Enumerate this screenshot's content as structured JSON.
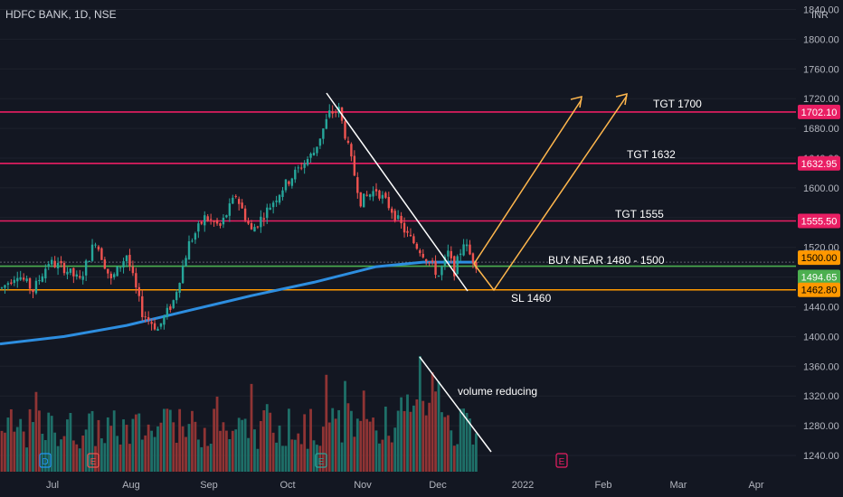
{
  "header": {
    "title": "HDFC BANK, 1D, NSE",
    "currency": "INR"
  },
  "colors": {
    "background": "#131722",
    "up": "#26a69a",
    "down": "#ef5350",
    "volume_up": "#1e6f68",
    "volume_down": "#8f3434",
    "ma": "#2d8ee0",
    "resistance": "#e91e63",
    "support_buy": "#4caf50",
    "stop_loss": "#ff9800",
    "projection": "#ffb74d",
    "trendline": "#ffffff",
    "axis_text": "#b2b5be",
    "grid": "#1e222d"
  },
  "chart_data": {
    "type": "candlestick",
    "title": "HDFC BANK, 1D, NSE",
    "ylim": [
      1226,
      1850
    ],
    "y_ticks": [
      "1840.00",
      "1800.00",
      "1760.00",
      "1720.00",
      "1680.00",
      "1640.00",
      "1600.00",
      "1560.00",
      "1520.00",
      "1480.00",
      "1440.00",
      "1400.00",
      "1360.00",
      "1320.00",
      "1280.00",
      "1240.00"
    ],
    "x_ticks": [
      "Jul",
      "Aug",
      "Sep",
      "Oct",
      "Nov",
      "Dec",
      "2022",
      "Feb",
      "Mar",
      "Apr"
    ],
    "price_path": [
      [
        0,
        1465
      ],
      [
        5,
        1485
      ],
      [
        10,
        1462
      ],
      [
        15,
        1500
      ],
      [
        20,
        1492
      ],
      [
        25,
        1475
      ],
      [
        30,
        1530
      ],
      [
        35,
        1475
      ],
      [
        40,
        1510
      ],
      [
        45,
        1432
      ],
      [
        50,
        1410
      ],
      [
        55,
        1448
      ],
      [
        60,
        1525
      ],
      [
        65,
        1560
      ],
      [
        70,
        1548
      ],
      [
        75,
        1590
      ],
      [
        80,
        1542
      ],
      [
        85,
        1570
      ],
      [
        90,
        1600
      ],
      [
        95,
        1625
      ],
      [
        100,
        1648
      ],
      [
        105,
        1700
      ],
      [
        108,
        1705
      ],
      [
        110,
        1672
      ],
      [
        115,
        1582
      ],
      [
        120,
        1598
      ],
      [
        125,
        1570
      ],
      [
        130,
        1536
      ],
      [
        135,
        1512
      ],
      [
        140,
        1482
      ],
      [
        143,
        1512
      ],
      [
        145,
        1488
      ],
      [
        148,
        1528
      ],
      [
        150,
        1510
      ],
      [
        152,
        1498
      ]
    ],
    "moving_average": [
      [
        -1,
        1390
      ],
      [
        20,
        1400
      ],
      [
        40,
        1415
      ],
      [
        60,
        1435
      ],
      [
        80,
        1455
      ],
      [
        100,
        1473
      ],
      [
        120,
        1494
      ],
      [
        135,
        1500
      ],
      [
        152,
        1500
      ]
    ],
    "levels": [
      {
        "label": "1702.10",
        "value": 1702.1,
        "type": "resistance",
        "note": "TGT 1700"
      },
      {
        "label": "1632.95",
        "value": 1632.95,
        "type": "resistance",
        "note": "TGT 1632"
      },
      {
        "label": "1555.50",
        "value": 1555.5,
        "type": "resistance",
        "note": "TGT 1555"
      },
      {
        "label": "1500.00",
        "value": 1500.0,
        "type": "current",
        "note": "BUY NEAR 1480 - 1500"
      },
      {
        "label": "1494.65",
        "value": 1494.65,
        "type": "support",
        "note": ""
      },
      {
        "label": "1462.80",
        "value": 1462.8,
        "type": "stoploss",
        "note": "SL 1460"
      }
    ],
    "volume_note": "volume reducing",
    "event_markers": [
      "D",
      "E",
      "E",
      "E"
    ]
  }
}
